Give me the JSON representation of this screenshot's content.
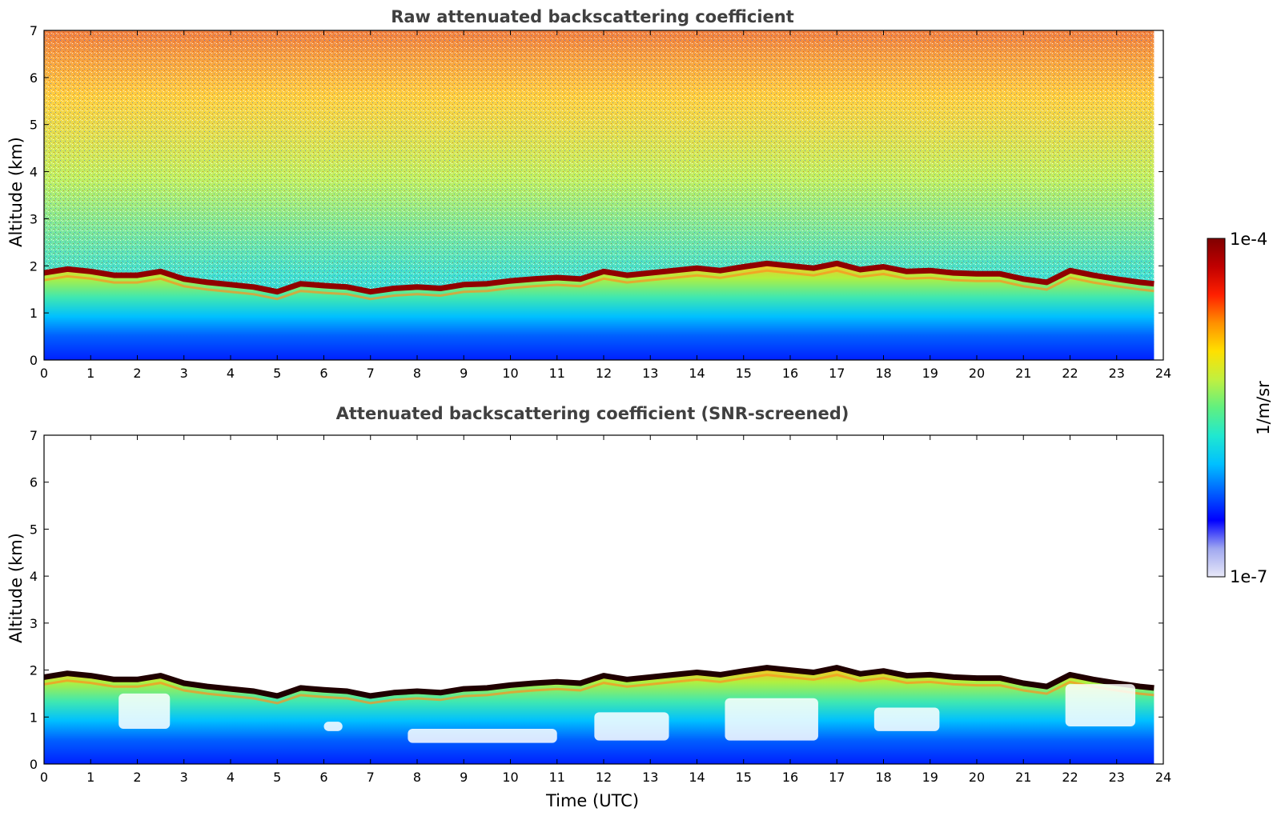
{
  "colorbar": {
    "max_label": "1e-4",
    "min_label": "1e-7",
    "unit_label": "1/m/sr",
    "max_value": 0.0001,
    "min_value": 1e-07,
    "scale": "log",
    "colors": [
      "#e8e8f8",
      "#a0a8f0",
      "#0000ff",
      "#0060ff",
      "#00c0ff",
      "#20e8d0",
      "#60f080",
      "#c0f040",
      "#ffe000",
      "#ff9000",
      "#ff2000",
      "#c00000",
      "#800000"
    ]
  },
  "chart_data": [
    {
      "type": "heatmap",
      "title": "Raw attenuated backscattering coefficient",
      "xlabel": "",
      "ylabel": "Altitude (km)",
      "xlim": [
        0,
        24
      ],
      "ylim": [
        0,
        7
      ],
      "x_ticks": [
        "0",
        "1",
        "2",
        "3",
        "4",
        "5",
        "6",
        "7",
        "8",
        "9",
        "10",
        "11",
        "12",
        "13",
        "14",
        "15",
        "16",
        "17",
        "18",
        "19",
        "20",
        "21",
        "22",
        "23",
        "24"
      ],
      "y_ticks": [
        "0",
        "1",
        "2",
        "3",
        "4",
        "5",
        "6",
        "7"
      ],
      "data_extent_x": [
        0,
        23.8
      ],
      "layer_top_km": [
        [
          0,
          1.85
        ],
        [
          0.5,
          1.93
        ],
        [
          1,
          1.88
        ],
        [
          1.5,
          1.8
        ],
        [
          2,
          1.8
        ],
        [
          2.5,
          1.88
        ],
        [
          3,
          1.72
        ],
        [
          3.5,
          1.65
        ],
        [
          4,
          1.6
        ],
        [
          4.5,
          1.55
        ],
        [
          5,
          1.45
        ],
        [
          5.5,
          1.62
        ],
        [
          6,
          1.58
        ],
        [
          6.5,
          1.55
        ],
        [
          7,
          1.45
        ],
        [
          7.5,
          1.52
        ],
        [
          8,
          1.55
        ],
        [
          8.5,
          1.52
        ],
        [
          9,
          1.6
        ],
        [
          9.5,
          1.62
        ],
        [
          10,
          1.68
        ],
        [
          10.5,
          1.72
        ],
        [
          11,
          1.75
        ],
        [
          11.5,
          1.72
        ],
        [
          12,
          1.88
        ],
        [
          12.5,
          1.8
        ],
        [
          13,
          1.85
        ],
        [
          13.5,
          1.9
        ],
        [
          14,
          1.95
        ],
        [
          14.5,
          1.9
        ],
        [
          15,
          1.98
        ],
        [
          15.5,
          2.05
        ],
        [
          16,
          2.0
        ],
        [
          16.5,
          1.95
        ],
        [
          17,
          2.05
        ],
        [
          17.5,
          1.92
        ],
        [
          18,
          1.98
        ],
        [
          18.5,
          1.88
        ],
        [
          19,
          1.9
        ],
        [
          19.5,
          1.85
        ],
        [
          20,
          1.83
        ],
        [
          20.5,
          1.83
        ],
        [
          21,
          1.72
        ],
        [
          21.5,
          1.65
        ],
        [
          22,
          1.9
        ],
        [
          22.5,
          1.8
        ],
        [
          23,
          1.72
        ],
        [
          23.5,
          1.65
        ],
        [
          23.8,
          1.62
        ]
      ]
    },
    {
      "type": "heatmap",
      "title": "Attenuated backscattering coefficient (SNR-screened)",
      "xlabel": "Time (UTC)",
      "ylabel": "Altitude (km)",
      "xlim": [
        0,
        24
      ],
      "ylim": [
        0,
        7
      ],
      "x_ticks": [
        "0",
        "1",
        "2",
        "3",
        "4",
        "5",
        "6",
        "7",
        "8",
        "9",
        "10",
        "11",
        "12",
        "13",
        "14",
        "15",
        "16",
        "17",
        "18",
        "19",
        "20",
        "21",
        "22",
        "23",
        "24"
      ],
      "y_ticks": [
        "0",
        "1",
        "2",
        "3",
        "4",
        "5",
        "6",
        "7"
      ],
      "data_extent_x": [
        0,
        23.8
      ],
      "layer_top_km": [
        [
          0,
          1.85
        ],
        [
          0.5,
          1.93
        ],
        [
          1,
          1.88
        ],
        [
          1.5,
          1.8
        ],
        [
          2,
          1.8
        ],
        [
          2.5,
          1.88
        ],
        [
          3,
          1.72
        ],
        [
          3.5,
          1.65
        ],
        [
          4,
          1.6
        ],
        [
          4.5,
          1.55
        ],
        [
          5,
          1.45
        ],
        [
          5.5,
          1.62
        ],
        [
          6,
          1.58
        ],
        [
          6.5,
          1.55
        ],
        [
          7,
          1.45
        ],
        [
          7.5,
          1.52
        ],
        [
          8,
          1.55
        ],
        [
          8.5,
          1.52
        ],
        [
          9,
          1.6
        ],
        [
          9.5,
          1.62
        ],
        [
          10,
          1.68
        ],
        [
          10.5,
          1.72
        ],
        [
          11,
          1.75
        ],
        [
          11.5,
          1.72
        ],
        [
          12,
          1.88
        ],
        [
          12.5,
          1.8
        ],
        [
          13,
          1.85
        ],
        [
          13.5,
          1.9
        ],
        [
          14,
          1.95
        ],
        [
          14.5,
          1.9
        ],
        [
          15,
          1.98
        ],
        [
          15.5,
          2.05
        ],
        [
          16,
          2.0
        ],
        [
          16.5,
          1.95
        ],
        [
          17,
          2.05
        ],
        [
          17.5,
          1.92
        ],
        [
          18,
          1.98
        ],
        [
          18.5,
          1.88
        ],
        [
          19,
          1.9
        ],
        [
          19.5,
          1.85
        ],
        [
          20,
          1.83
        ],
        [
          20.5,
          1.83
        ],
        [
          21,
          1.72
        ],
        [
          21.5,
          1.65
        ],
        [
          22,
          1.9
        ],
        [
          22.5,
          1.8
        ],
        [
          23,
          1.72
        ],
        [
          23.5,
          1.65
        ],
        [
          23.8,
          1.62
        ]
      ],
      "screened_gaps": [
        {
          "x": [
            1.6,
            2.7
          ],
          "y": [
            0.75,
            1.5
          ]
        },
        {
          "x": [
            6.0,
            6.4
          ],
          "y": [
            0.7,
            0.9
          ]
        },
        {
          "x": [
            7.8,
            11.0
          ],
          "y": [
            0.45,
            0.75
          ]
        },
        {
          "x": [
            11.8,
            13.4
          ],
          "y": [
            0.5,
            1.1
          ]
        },
        {
          "x": [
            14.6,
            16.6
          ],
          "y": [
            0.5,
            1.4
          ]
        },
        {
          "x": [
            17.8,
            19.2
          ],
          "y": [
            0.7,
            1.2
          ]
        },
        {
          "x": [
            21.9,
            23.4
          ],
          "y": [
            0.8,
            1.7
          ]
        }
      ]
    }
  ]
}
